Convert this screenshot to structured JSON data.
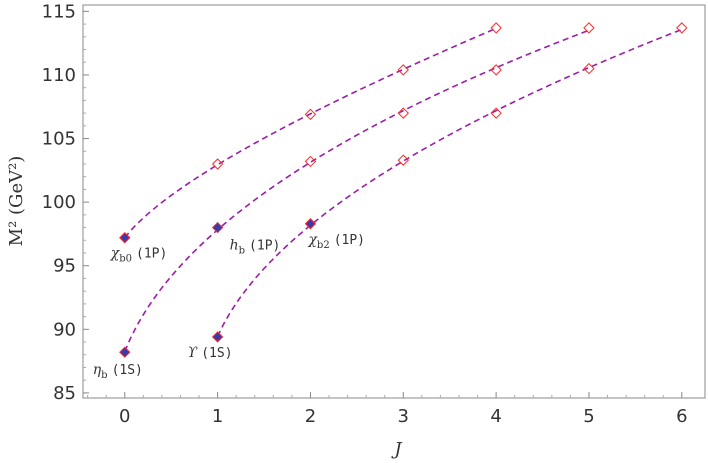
{
  "chart_data": {
    "type": "scatter",
    "xlabel": "J",
    "ylabel": "M² (GeV²)",
    "xlim": [
      -0.45,
      6.25
    ],
    "ylim": [
      84.6,
      115.5
    ],
    "xticks": [
      "0",
      "1",
      "2",
      "3",
      "4",
      "5",
      "6"
    ],
    "yticks": [
      "85",
      "90",
      "95",
      "100",
      "105",
      "110",
      "115"
    ],
    "grid": false,
    "colors": {
      "curve": "#9a1ea8",
      "open_marker": "#ff2a2a",
      "filled_marker": "#3b3aa6"
    },
    "series": [
      {
        "x": [
          0,
          1,
          2,
          3,
          4
        ],
        "y": [
          97.2,
          103.0,
          106.9,
          110.4,
          113.7
        ],
        "filled": [
          true,
          false,
          false,
          false,
          false
        ]
      },
      {
        "x": [
          0,
          1,
          2,
          3,
          4,
          5
        ],
        "y": [
          88.2,
          98.0,
          103.2,
          107.0,
          110.4,
          113.7
        ],
        "filled": [
          true,
          true,
          false,
          false,
          false,
          false
        ]
      },
      {
        "x": [
          1,
          2,
          3,
          4,
          5,
          6
        ],
        "y": [
          89.4,
          98.3,
          103.3,
          107.0,
          110.5,
          113.7
        ],
        "filled": [
          true,
          true,
          false,
          false,
          false,
          false
        ]
      }
    ],
    "annotations": [
      {
        "sym": "χ",
        "sub": "b0",
        "txt": "(1P)",
        "x": 0,
        "y": 97.2
      },
      {
        "sym": "h",
        "sub": "b",
        "txt": "(1P)",
        "x": 1,
        "y": 98.0
      },
      {
        "sym": "χ",
        "sub": "b2",
        "txt": "(1P)",
        "x": 2,
        "y": 98.3
      },
      {
        "sym": "η",
        "sub": "b",
        "txt": "(1S)",
        "x": 0,
        "y": 88.2
      },
      {
        "sym": "ϒ",
        "sub": "",
        "txt": "(1S)",
        "x": 1,
        "y": 89.4
      }
    ]
  }
}
